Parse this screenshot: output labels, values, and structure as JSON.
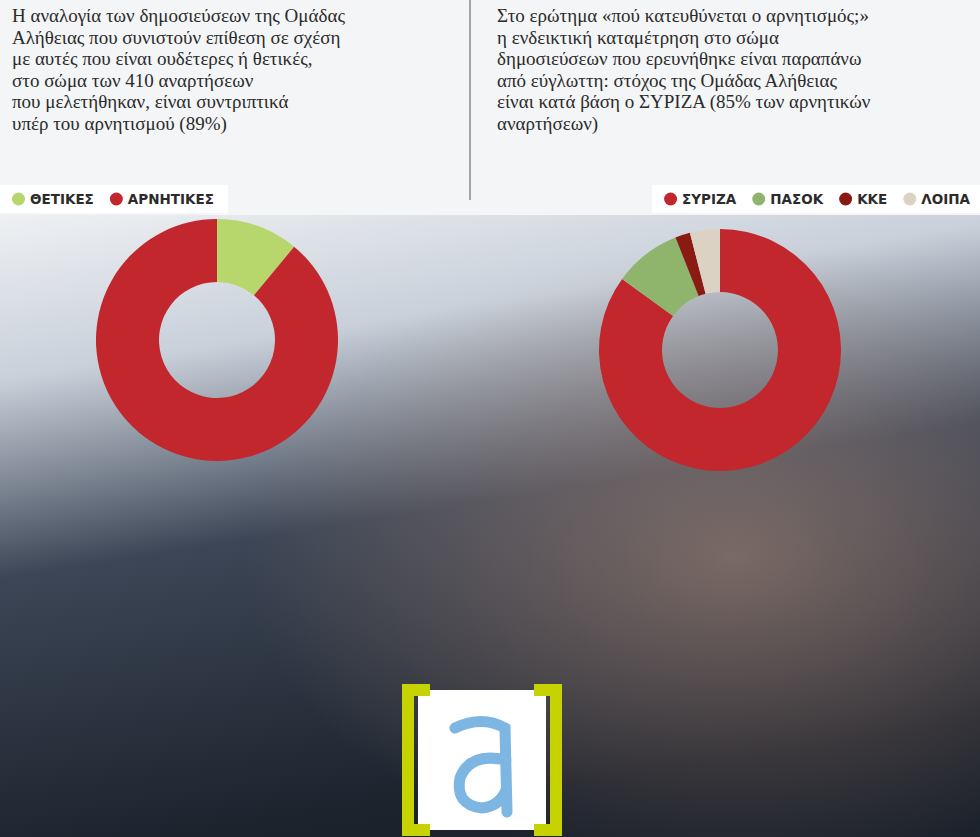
{
  "chart_data": [
    {
      "type": "pie",
      "title": "Η αναλογία των δημοσιεύσεων της Ομάδας\nΑλήθειας που συνιστούν επίθεση σε σχέση\nμε αυτές που είναι ουδέτερες ή θετικές,\nστο σώμα των 410 αναρτήσεων\nπου μελετήθηκαν, είναι συντριπτικά\nυπέρ του αρνητισμού (89%)",
      "categories": [
        "ΘΕΤΙΚΕΣ",
        "ΑΡΝΗΤΙΚΕΣ"
      ],
      "values": [
        11,
        89
      ],
      "colors": [
        "#b7d66b",
        "#c1272d"
      ],
      "legend": "top-left"
    },
    {
      "type": "pie",
      "title": "Στο ερώτημα «πού κατευθύνεται ο αρνητισμός;»\nη ενδεικτική καταμέτρηση στο σώμα\nδημοσιεύσεων που ερευνήθηκε είναι παραπάνω\nαπό εύγλωττη: στόχος της Ομάδας Αλήθειας\nείναι κατά βάση ο ΣΥΡΙΖΑ (85% των αρνητικών\nαναρτήσεων)",
      "categories": [
        "ΣΥΡΙΖΑ",
        "ΠΑΣΟΚ",
        "ΚΚΕ",
        "ΛΟΙΠΑ"
      ],
      "values": [
        85,
        9,
        2,
        4
      ],
      "colors": [
        "#c1272d",
        "#8fb56d",
        "#8a1b12",
        "#dcd2c3"
      ],
      "legend": "top-right"
    }
  ]
}
